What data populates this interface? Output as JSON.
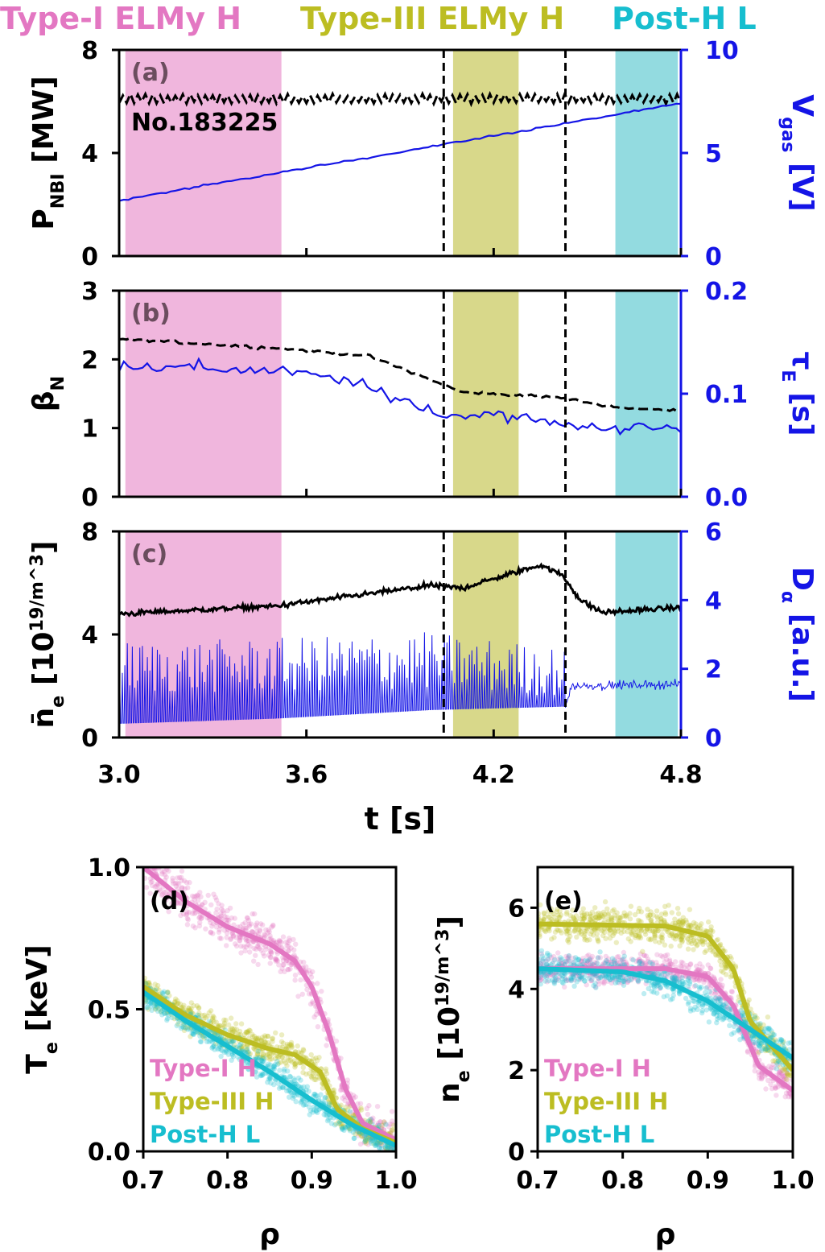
{
  "header": {
    "regimes": [
      {
        "label": "Type-I ELMy H",
        "color": "#e377c2"
      },
      {
        "label": "Type-III ELMy H",
        "color": "#bcbd22"
      },
      {
        "label": "Post-H L",
        "color": "#17becf"
      }
    ]
  },
  "colors": {
    "left_axis": "#000000",
    "right_axis": "#1414e6",
    "shade_I": "#f0b6dd",
    "shade_III": "#d8d88a",
    "shade_L": "#93dbe0"
  },
  "chart_data": [
    {
      "id": "a",
      "type": "line",
      "panel_label": "(a)",
      "annotation": "No.183225",
      "xlim": [
        3.0,
        4.8
      ],
      "xlabel": "t [s]",
      "xticks": [
        "3.0",
        "3.6",
        "4.2",
        "4.8"
      ],
      "shaded_regions": [
        {
          "regime": "Type-I ELMy H",
          "x": [
            3.02,
            3.52
          ]
        },
        {
          "regime": "Type-III ELMy H",
          "x": [
            4.07,
            4.28
          ]
        },
        {
          "regime": "Post-H L",
          "x": [
            4.59,
            4.79
          ]
        }
      ],
      "vlines": [
        4.04,
        4.43
      ],
      "left_axis": {
        "label": "P_NBI [MW]",
        "ylim": [
          0,
          8
        ],
        "yticks": [
          "0",
          "4",
          "8"
        ]
      },
      "right_axis": {
        "label": "V_gas [V]",
        "ylim": [
          0,
          10
        ],
        "yticks": [
          "0",
          "5",
          "10"
        ]
      },
      "series": [
        {
          "axis": "left",
          "style": "dashed",
          "trend": [
            [
              3.0,
              6.1
            ],
            [
              4.8,
              6.1
            ]
          ],
          "oscillation": 0.2
        },
        {
          "axis": "right",
          "style": "solid",
          "trend": [
            [
              3.0,
              2.7
            ],
            [
              4.8,
              7.4
            ]
          ],
          "oscillation": 0.05
        }
      ]
    },
    {
      "id": "b",
      "type": "line",
      "panel_label": "(b)",
      "xlim": [
        3.0,
        4.8
      ],
      "left_axis": {
        "label": "β_N",
        "ylim": [
          0,
          3
        ],
        "yticks": [
          "0",
          "1",
          "2",
          "3"
        ]
      },
      "right_axis": {
        "label": "τ_E [s]",
        "ylim": [
          0.0,
          0.2
        ],
        "yticks": [
          "0.0",
          "0.1",
          "0.2"
        ]
      },
      "series": [
        {
          "axis": "left",
          "style": "dashed",
          "trend": [
            [
              3.0,
              2.3
            ],
            [
              3.3,
              2.22
            ],
            [
              3.55,
              2.15
            ],
            [
              3.8,
              2.05
            ],
            [
              4.0,
              1.7
            ],
            [
              4.1,
              1.52
            ],
            [
              4.4,
              1.45
            ],
            [
              4.6,
              1.3
            ],
            [
              4.8,
              1.25
            ]
          ],
          "oscillation": 0.02
        },
        {
          "axis": "right",
          "style": "solid",
          "trend": [
            [
              3.0,
              0.128
            ],
            [
              3.5,
              0.122
            ],
            [
              3.7,
              0.115
            ],
            [
              3.9,
              0.095
            ],
            [
              4.05,
              0.078
            ],
            [
              4.2,
              0.082
            ],
            [
              4.4,
              0.07
            ],
            [
              4.6,
              0.067
            ],
            [
              4.8,
              0.066
            ]
          ],
          "oscillation": 0.006
        }
      ]
    },
    {
      "id": "c",
      "type": "line",
      "panel_label": "(c)",
      "xlim": [
        3.0,
        4.8
      ],
      "left_axis": {
        "label": "n̄_e [10^19/m^3]",
        "ylim": [
          0,
          8
        ],
        "yticks": [
          "0",
          "4",
          "8"
        ]
      },
      "right_axis": {
        "label": "D_α [a.u.]",
        "ylim": [
          0,
          6
        ],
        "yticks": [
          "0",
          "2",
          "4",
          "6"
        ]
      },
      "series": [
        {
          "axis": "left",
          "style": "solid",
          "trend": [
            [
              3.0,
              4.8
            ],
            [
              3.5,
              5.1
            ],
            [
              4.0,
              5.9
            ],
            [
              4.1,
              5.8
            ],
            [
              4.35,
              6.7
            ],
            [
              4.42,
              6.3
            ],
            [
              4.48,
              5.3
            ],
            [
              4.55,
              4.85
            ],
            [
              4.8,
              5.05
            ]
          ],
          "oscillation": 0.1
        },
        {
          "axis": "right",
          "style": "spiky",
          "baseline": [
            [
              3.0,
              0.4
            ],
            [
              3.5,
              0.55
            ],
            [
              4.0,
              0.8
            ],
            [
              4.43,
              0.9
            ],
            [
              4.45,
              1.5
            ],
            [
              4.8,
              1.55
            ]
          ],
          "spike_peak": [
            [
              3.0,
              2.8
            ],
            [
              3.5,
              2.9
            ],
            [
              4.0,
              3.1
            ],
            [
              4.43,
              2.6
            ]
          ],
          "spike_period": 0.008
        }
      ]
    },
    {
      "id": "d",
      "type": "scatter",
      "panel_label": "(d)",
      "xlim": [
        0.7,
        1.0
      ],
      "ylim": [
        0.0,
        1.0
      ],
      "xlabel": "ρ",
      "ylabel": "T_e [keV]",
      "xticks": [
        "0.7",
        "0.8",
        "0.9",
        "1.0"
      ],
      "yticks": [
        "0.0",
        "0.5",
        "1.0"
      ],
      "legend": [
        "Type-I H",
        "Type-III H",
        "Post-H L"
      ],
      "series": [
        {
          "name": "Type-I H",
          "fit": [
            [
              0.7,
              1.0
            ],
            [
              0.75,
              0.88
            ],
            [
              0.8,
              0.79
            ],
            [
              0.85,
              0.73
            ],
            [
              0.88,
              0.67
            ],
            [
              0.9,
              0.58
            ],
            [
              0.92,
              0.42
            ],
            [
              0.94,
              0.22
            ],
            [
              0.96,
              0.1
            ],
            [
              1.0,
              0.04
            ]
          ],
          "spread": 0.07
        },
        {
          "name": "Type-III H",
          "fit": [
            [
              0.7,
              0.58
            ],
            [
              0.75,
              0.48
            ],
            [
              0.8,
              0.41
            ],
            [
              0.85,
              0.36
            ],
            [
              0.88,
              0.34
            ],
            [
              0.91,
              0.28
            ],
            [
              0.93,
              0.15
            ],
            [
              0.96,
              0.08
            ],
            [
              1.0,
              0.03
            ]
          ],
          "spread": 0.05
        },
        {
          "name": "Post-H L",
          "fit": [
            [
              0.7,
              0.56
            ],
            [
              0.75,
              0.46
            ],
            [
              0.8,
              0.37
            ],
            [
              0.85,
              0.28
            ],
            [
              0.9,
              0.18
            ],
            [
              0.95,
              0.09
            ],
            [
              1.0,
              0.02
            ]
          ],
          "spread": 0.04
        }
      ]
    },
    {
      "id": "e",
      "type": "scatter",
      "panel_label": "(e)",
      "xlim": [
        0.7,
        1.0
      ],
      "ylim": [
        0,
        7
      ],
      "xlabel": "ρ",
      "ylabel": "n_e [10^19/m^3]",
      "xticks": [
        "0.7",
        "0.8",
        "0.9",
        "1.0"
      ],
      "yticks": [
        "0",
        "2",
        "4",
        "6"
      ],
      "legend": [
        "Type-I H",
        "Type-III H",
        "Post-H L"
      ],
      "series": [
        {
          "name": "Type-I H",
          "fit": [
            [
              0.7,
              4.5
            ],
            [
              0.85,
              4.5
            ],
            [
              0.9,
              4.3
            ],
            [
              0.93,
              3.6
            ],
            [
              0.96,
              2.1
            ],
            [
              1.0,
              1.5
            ]
          ],
          "spread": 0.35
        },
        {
          "name": "Type-III H",
          "fit": [
            [
              0.7,
              5.6
            ],
            [
              0.85,
              5.55
            ],
            [
              0.9,
              5.3
            ],
            [
              0.93,
              4.5
            ],
            [
              0.95,
              3.2
            ],
            [
              1.0,
              2.0
            ]
          ],
          "spread": 0.4
        },
        {
          "name": "Post-H L",
          "fit": [
            [
              0.7,
              4.5
            ],
            [
              0.8,
              4.42
            ],
            [
              0.85,
              4.2
            ],
            [
              0.9,
              3.7
            ],
            [
              0.95,
              3.0
            ],
            [
              1.0,
              2.3
            ]
          ],
          "spread": 0.35
        }
      ]
    }
  ]
}
